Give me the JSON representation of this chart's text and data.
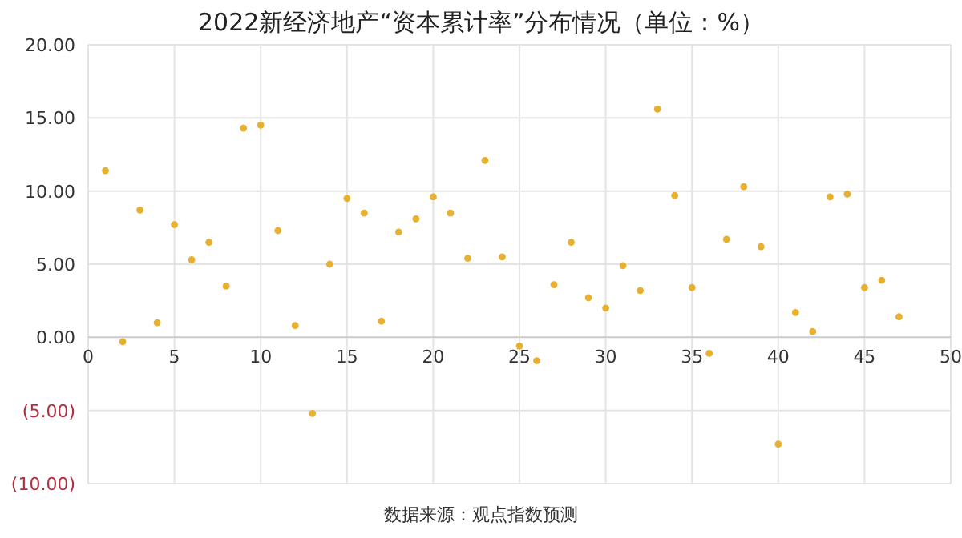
{
  "chart_data": {
    "type": "scatter",
    "title": "2022新经济地产“资本累计率”分布情况（单位：%）",
    "annotations": [
      "数据来源：观点指数预测"
    ],
    "x": [
      1,
      2,
      3,
      4,
      5,
      6,
      7,
      8,
      9,
      10,
      11,
      12,
      13,
      14,
      15,
      16,
      17,
      18,
      19,
      20,
      21,
      22,
      23,
      24,
      25,
      26,
      27,
      28,
      29,
      30,
      31,
      32,
      33,
      34,
      35,
      36,
      37,
      38,
      39,
      40,
      41,
      42,
      43,
      44,
      45,
      46,
      47
    ],
    "series": [
      {
        "color": "#e8b030",
        "values": [
          11.4,
          -0.3,
          8.7,
          1.0,
          7.7,
          5.3,
          6.5,
          3.5,
          14.3,
          14.5,
          7.3,
          0.8,
          -5.2,
          5.0,
          9.5,
          8.5,
          1.1,
          7.2,
          8.1,
          9.6,
          8.5,
          5.4,
          12.1,
          5.5,
          -0.6,
          -1.6,
          3.6,
          6.5,
          2.7,
          2.0,
          4.9,
          3.2,
          15.6,
          9.7,
          3.4,
          -1.1,
          6.7,
          10.3,
          6.2,
          -7.3,
          1.7,
          0.4,
          9.6,
          9.8,
          3.4,
          3.9,
          1.4
        ]
      }
    ],
    "xlim": [
      0,
      50
    ],
    "xticks": [
      0,
      5,
      10,
      15,
      20,
      25,
      30,
      35,
      40,
      45,
      50
    ],
    "ylim": [
      -10,
      20
    ],
    "yticks": [
      {
        "value": 20,
        "label": "20.00"
      },
      {
        "value": 15,
        "label": "15.00"
      },
      {
        "value": 10,
        "label": "10.00"
      },
      {
        "value": 5,
        "label": "5.00"
      },
      {
        "value": 0,
        "label": "0.00"
      },
      {
        "value": -5,
        "label": "(5.00)"
      },
      {
        "value": -10,
        "label": "(10.00)"
      }
    ],
    "grid": true,
    "marker": "circle"
  }
}
